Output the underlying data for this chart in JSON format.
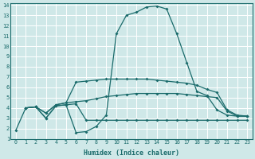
{
  "xlabel": "Humidex (Indice chaleur)",
  "xlim": [
    -0.5,
    23.5
  ],
  "ylim": [
    1,
    14.2
  ],
  "xticks": [
    0,
    1,
    2,
    3,
    4,
    5,
    6,
    7,
    8,
    9,
    10,
    11,
    12,
    13,
    14,
    15,
    16,
    17,
    18,
    19,
    20,
    21,
    22,
    23
  ],
  "yticks": [
    1,
    2,
    3,
    4,
    5,
    6,
    7,
    8,
    9,
    10,
    11,
    12,
    13,
    14
  ],
  "bg_color": "#cfe8e8",
  "grid_color": "#b0d4d4",
  "line_color": "#1a6b6b",
  "line1_x": [
    0,
    1,
    2,
    3,
    4,
    5,
    6,
    7,
    8,
    9,
    10,
    11,
    12,
    13,
    14,
    15,
    16,
    17,
    18,
    19,
    20,
    21,
    22,
    23
  ],
  "line1_y": [
    1.8,
    4.0,
    4.1,
    3.0,
    4.2,
    4.3,
    1.6,
    1.7,
    2.2,
    3.3,
    11.2,
    13.0,
    13.3,
    13.8,
    13.9,
    13.6,
    11.2,
    8.4,
    5.6,
    5.2,
    3.8,
    3.3,
    3.2,
    3.2
  ],
  "line2_x": [
    1,
    2,
    3,
    4,
    5,
    6,
    7,
    8,
    9,
    10,
    11,
    12,
    13,
    14,
    15,
    16,
    17,
    18,
    19,
    20,
    21,
    22,
    23
  ],
  "line2_y": [
    4.0,
    4.1,
    3.5,
    4.3,
    4.5,
    6.5,
    6.6,
    6.7,
    6.8,
    6.8,
    6.8,
    6.8,
    6.8,
    6.7,
    6.6,
    6.5,
    6.4,
    6.2,
    5.8,
    5.5,
    3.8,
    3.3,
    3.2
  ],
  "line3_x": [
    1,
    2,
    3,
    4,
    5,
    6,
    7,
    8,
    9,
    10,
    11,
    12,
    13,
    14,
    15,
    16,
    17,
    18,
    19,
    20,
    21,
    22,
    23
  ],
  "line3_y": [
    4.0,
    4.1,
    3.5,
    4.3,
    4.5,
    4.6,
    4.7,
    4.9,
    5.1,
    5.2,
    5.3,
    5.4,
    5.4,
    5.4,
    5.4,
    5.4,
    5.3,
    5.2,
    5.1,
    5.0,
    3.7,
    3.2,
    3.2
  ],
  "line4_x": [
    1,
    2,
    3,
    4,
    5,
    6,
    7,
    8,
    9,
    10,
    11,
    12,
    13,
    14,
    15,
    16,
    17,
    18,
    19,
    20,
    21,
    22,
    23
  ],
  "line4_y": [
    4.0,
    4.1,
    3.0,
    4.2,
    4.3,
    4.4,
    2.8,
    2.8,
    2.8,
    2.8,
    2.8,
    2.8,
    2.8,
    2.8,
    2.8,
    2.8,
    2.8,
    2.8,
    2.8,
    2.8,
    2.8,
    2.8,
    2.8
  ]
}
